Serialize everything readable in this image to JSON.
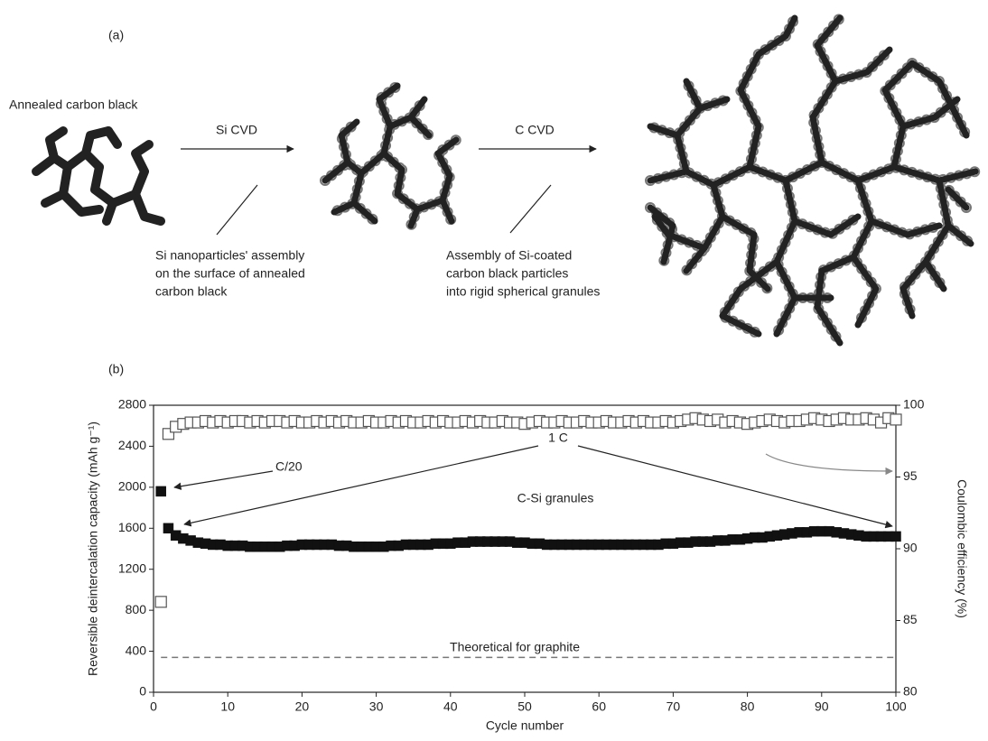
{
  "panel_a": {
    "label": "(a)",
    "start_label": "Annealed carbon black",
    "step1": {
      "arrow_label": "Si CVD",
      "note": [
        "Si nanoparticles' assembly",
        "on the surface of annealed",
        "carbon black"
      ]
    },
    "step2": {
      "arrow_label": "C CVD",
      "note": [
        "Assembly of Si-coated",
        "carbon black particles",
        "into rigid spherical granules"
      ]
    }
  },
  "panel_b_label": "(b)",
  "chart_data": {
    "type": "scatter",
    "xlabel": "Cycle number",
    "ylabel": "Reversible deintercalation capacity (mAh g⁻¹)",
    "y2label": "Coulombic efficiency (%)",
    "xlim": [
      0,
      100
    ],
    "ylim": [
      0,
      2800
    ],
    "y2lim": [
      80,
      100
    ],
    "xticks": [
      0,
      10,
      20,
      30,
      40,
      50,
      60,
      70,
      80,
      90,
      100
    ],
    "yticks": [
      0,
      400,
      800,
      1200,
      1600,
      2000,
      2400,
      2800
    ],
    "y2ticks": [
      80,
      85,
      90,
      95,
      100
    ],
    "x": [
      1,
      2,
      3,
      4,
      5,
      6,
      7,
      8,
      9,
      10,
      11,
      12,
      13,
      14,
      15,
      16,
      17,
      18,
      19,
      20,
      21,
      22,
      23,
      24,
      25,
      26,
      27,
      28,
      29,
      30,
      31,
      32,
      33,
      34,
      35,
      36,
      37,
      38,
      39,
      40,
      41,
      42,
      43,
      44,
      45,
      46,
      47,
      48,
      49,
      50,
      51,
      52,
      53,
      54,
      55,
      56,
      57,
      58,
      59,
      60,
      61,
      62,
      63,
      64,
      65,
      66,
      67,
      68,
      69,
      70,
      71,
      72,
      73,
      74,
      75,
      76,
      77,
      78,
      79,
      80,
      81,
      82,
      83,
      84,
      85,
      86,
      87,
      88,
      89,
      90,
      91,
      92,
      93,
      94,
      95,
      96,
      97,
      98,
      99,
      100
    ],
    "series": [
      {
        "name": "C-Si granules",
        "color": "#111111",
        "marker": "filled-square",
        "axis": "y",
        "values": [
          1960,
          1600,
          1530,
          1500,
          1480,
          1460,
          1450,
          1440,
          1440,
          1430,
          1430,
          1430,
          1420,
          1420,
          1420,
          1420,
          1420,
          1430,
          1430,
          1440,
          1440,
          1440,
          1440,
          1440,
          1430,
          1430,
          1420,
          1420,
          1420,
          1420,
          1420,
          1430,
          1430,
          1440,
          1440,
          1440,
          1440,
          1450,
          1450,
          1450,
          1460,
          1460,
          1470,
          1470,
          1470,
          1470,
          1470,
          1470,
          1460,
          1460,
          1450,
          1450,
          1440,
          1440,
          1440,
          1440,
          1440,
          1440,
          1440,
          1440,
          1440,
          1440,
          1440,
          1440,
          1440,
          1440,
          1440,
          1440,
          1450,
          1450,
          1460,
          1460,
          1470,
          1470,
          1470,
          1480,
          1480,
          1490,
          1490,
          1500,
          1510,
          1510,
          1520,
          1530,
          1540,
          1550,
          1560,
          1560,
          1570,
          1570,
          1570,
          1560,
          1550,
          1540,
          1530,
          1520,
          1520,
          1520,
          1520,
          1520
        ]
      },
      {
        "color": "#555555",
        "marker": "open-square",
        "axis": "y2",
        "values": [
          86.3,
          98.0,
          98.5,
          98.7,
          98.8,
          98.8,
          98.9,
          98.8,
          98.9,
          98.8,
          98.9,
          98.9,
          98.8,
          98.9,
          98.8,
          98.9,
          98.9,
          98.8,
          98.9,
          98.8,
          98.8,
          98.9,
          98.8,
          98.9,
          98.8,
          98.9,
          98.8,
          98.8,
          98.9,
          98.8,
          98.8,
          98.9,
          98.8,
          98.9,
          98.8,
          98.8,
          98.9,
          98.8,
          98.9,
          98.8,
          98.8,
          98.9,
          98.8,
          98.9,
          98.8,
          98.8,
          98.9,
          98.8,
          98.8,
          98.7,
          98.8,
          98.9,
          98.8,
          98.8,
          98.9,
          98.8,
          98.8,
          98.9,
          98.8,
          98.8,
          98.9,
          98.8,
          98.8,
          98.9,
          98.8,
          98.9,
          98.8,
          98.8,
          98.9,
          98.8,
          98.9,
          99.0,
          99.1,
          99.0,
          98.9,
          99.0,
          98.8,
          98.9,
          98.8,
          98.7,
          98.8,
          98.9,
          99.0,
          98.9,
          98.8,
          98.9,
          98.9,
          99.0,
          99.1,
          99.0,
          98.9,
          99.0,
          99.1,
          99.0,
          99.0,
          99.1,
          99.0,
          98.8,
          99.1,
          99.0
        ]
      }
    ],
    "reference_line": {
      "label": "Theoretical for graphite",
      "value": 340,
      "color": "#777777",
      "style": "dashed"
    },
    "annotations": [
      "C/20",
      "1 C"
    ]
  }
}
